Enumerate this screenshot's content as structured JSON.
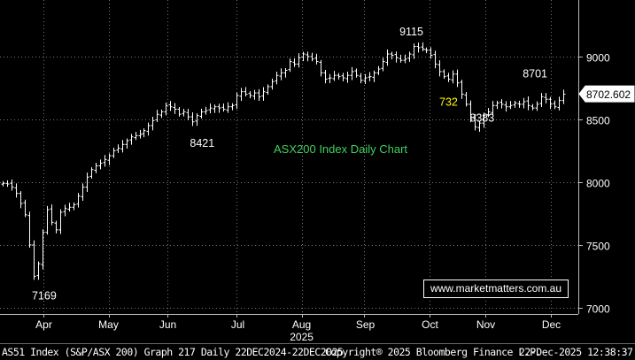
{
  "chart_data": {
    "type": "ohlc",
    "title": "ASX200 Index Daily Chart",
    "ylim": [
      6950,
      9450
    ],
    "y_ticks": [
      7000,
      7500,
      8000,
      8500,
      9000
    ],
    "grid": true,
    "x_ticks": [
      "Apr",
      "May",
      "Jun",
      "Jul",
      "Aug",
      "Sep",
      "Oct",
      "Nov",
      "Dec"
    ],
    "x_year_label": "2025",
    "last_price": "8702.602",
    "last_value": 8702.6,
    "annotations": [
      {
        "text": "7169",
        "color": "#ffffff"
      },
      {
        "text": "8421",
        "color": "#ffffff"
      },
      {
        "text": "9115",
        "color": "#ffffff"
      },
      {
        "text": "732",
        "color": "#ffff00"
      },
      {
        "text": "8383",
        "color": "#ffffff"
      },
      {
        "text": "8701",
        "color": "#ffffff"
      }
    ],
    "series": [
      {
        "values": [
          7990,
          7985,
          7960,
          7910,
          7830,
          7740,
          7500,
          7250,
          7350,
          7600,
          7780,
          7680,
          7620,
          7760,
          7790,
          7800,
          7820,
          7890,
          7960,
          8040,
          8100,
          8130,
          8150,
          8180,
          8210,
          8250,
          8270,
          8300,
          8330,
          8360,
          8370,
          8380,
          8410,
          8450,
          8490,
          8540,
          8560,
          8610,
          8600,
          8580,
          8540,
          8560,
          8520,
          8480,
          8530,
          8560,
          8570,
          8590,
          8600,
          8590,
          8580,
          8600,
          8610,
          8690,
          8720,
          8700,
          8690,
          8710,
          8680,
          8720,
          8760,
          8800,
          8850,
          8870,
          8890,
          8960,
          8940,
          8990,
          9020,
          9000,
          8980,
          8960,
          8870,
          8820,
          8830,
          8850,
          8840,
          8830,
          8850,
          8880,
          8850,
          8810,
          8830,
          8840,
          8870,
          8900,
          8960,
          9020,
          9010,
          8990,
          8970,
          8980,
          9020,
          9080,
          9070,
          9060,
          9050,
          9010,
          8940,
          8880,
          8840,
          8820,
          8860,
          8790,
          8700,
          8620,
          8500,
          8440,
          8470,
          8530,
          8560,
          8610,
          8630,
          8620,
          8600,
          8610,
          8630,
          8620,
          8640,
          8610,
          8590,
          8620,
          8680,
          8660,
          8620,
          8600,
          8650,
          8700
        ]
      }
    ]
  },
  "footer": {
    "left": "AS51 Index (S&P/ASX 200) Graph 217 Daily 22DEC2024-22DEC2025",
    "center": "Copyright® 2025 Bloomberg Finance L.P.",
    "right": "22-Dec-2025 12:38:37"
  },
  "watermark": "www.marketmatters.com.au"
}
